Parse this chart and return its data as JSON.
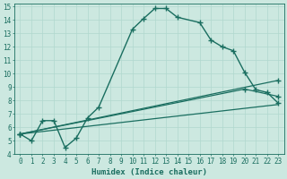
{
  "xlabel": "Humidex (Indice chaleur)",
  "xlim": [
    -0.5,
    23.5
  ],
  "ylim": [
    4,
    15.2
  ],
  "xticks": [
    0,
    1,
    2,
    3,
    4,
    5,
    6,
    7,
    8,
    9,
    10,
    11,
    12,
    13,
    14,
    15,
    16,
    17,
    18,
    19,
    20,
    21,
    22,
    23
  ],
  "yticks": [
    4,
    5,
    6,
    7,
    8,
    9,
    10,
    11,
    12,
    13,
    14,
    15
  ],
  "bg_color": "#cce8e0",
  "grid_color": "#b0d8ce",
  "line_color": "#1a6e60",
  "series": [
    {
      "x": [
        0,
        1,
        2,
        3,
        4,
        5,
        6,
        7,
        10,
        11,
        12,
        13,
        14,
        16,
        17,
        18,
        19,
        20,
        21,
        22,
        23
      ],
      "y": [
        5.5,
        5.0,
        6.5,
        6.5,
        4.5,
        5.2,
        6.7,
        7.5,
        13.3,
        14.1,
        14.85,
        14.85,
        14.2,
        13.8,
        12.5,
        12.0,
        11.7,
        10.1,
        8.8,
        8.6,
        7.8
      ],
      "marker": "+",
      "markersize": 5,
      "linewidth": 1.0,
      "linestyle": "-"
    },
    {
      "x": [
        0,
        23
      ],
      "y": [
        5.5,
        9.5
      ],
      "marker": "+",
      "markersize": 4,
      "linewidth": 0.9,
      "linestyle": "-"
    },
    {
      "x": [
        0,
        20,
        23
      ],
      "y": [
        5.5,
        8.85,
        8.3
      ],
      "marker": "+",
      "markersize": 4,
      "linewidth": 0.9,
      "linestyle": "-"
    },
    {
      "x": [
        0,
        23
      ],
      "y": [
        5.5,
        7.7
      ],
      "marker": null,
      "markersize": 0,
      "linewidth": 0.9,
      "linestyle": "-"
    }
  ]
}
